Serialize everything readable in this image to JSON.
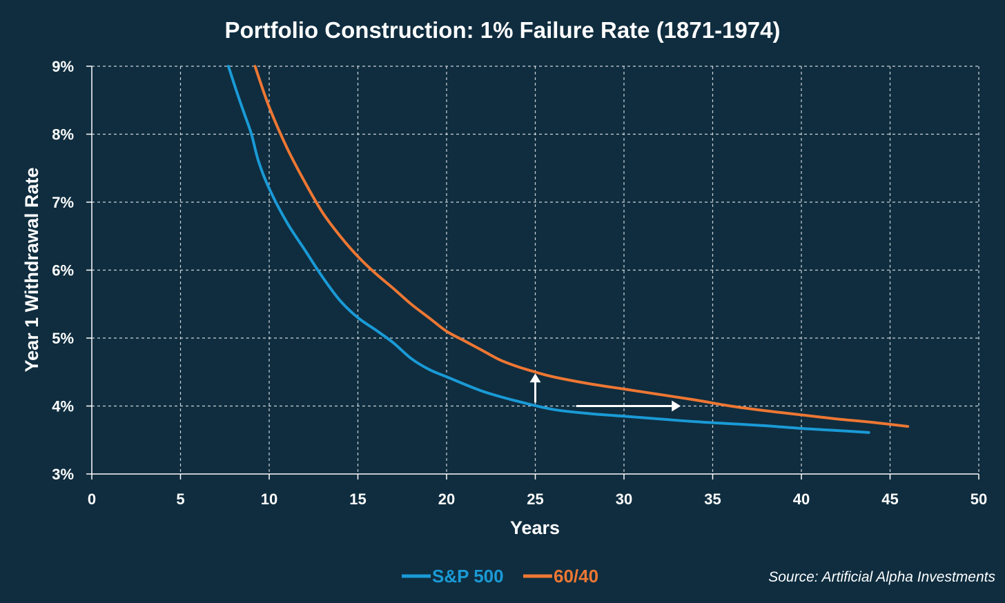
{
  "chart_data": {
    "type": "line",
    "title": "Portfolio Construction: 1% Failure Rate (1871-1974)",
    "xlabel": "Years",
    "ylabel": "Year 1 Withdrawal Rate",
    "xlim": [
      0,
      50
    ],
    "ylim": [
      3,
      9
    ],
    "x_ticks": [
      "0",
      "5",
      "10",
      "15",
      "20",
      "25",
      "30",
      "35",
      "40",
      "45",
      "50"
    ],
    "y_ticks": [
      "3%",
      "4%",
      "5%",
      "6%",
      "7%",
      "8%",
      "9%"
    ],
    "grid": true,
    "legend_position": "bottom",
    "series": [
      {
        "name": "S&P 500",
        "color": "#1a9ad6",
        "points": [
          [
            7.7,
            9.0
          ],
          [
            8.2,
            8.6
          ],
          [
            8.6,
            8.3
          ],
          [
            9.0,
            8.0
          ],
          [
            9.4,
            7.6
          ],
          [
            10.0,
            7.2
          ],
          [
            11.0,
            6.7
          ],
          [
            12.0,
            6.3
          ],
          [
            13.0,
            5.9
          ],
          [
            14.0,
            5.55
          ],
          [
            15.0,
            5.3
          ],
          [
            16.0,
            5.12
          ],
          [
            17.0,
            4.93
          ],
          [
            18.0,
            4.7
          ],
          [
            19.0,
            4.54
          ],
          [
            20.0,
            4.43
          ],
          [
            22.0,
            4.22
          ],
          [
            24.0,
            4.07
          ],
          [
            26.0,
            3.95
          ],
          [
            28.0,
            3.89
          ],
          [
            30.0,
            3.85
          ],
          [
            32.0,
            3.81
          ],
          [
            34.0,
            3.77
          ],
          [
            36.0,
            3.74
          ],
          [
            38.0,
            3.71
          ],
          [
            40.0,
            3.67
          ],
          [
            42.0,
            3.64
          ],
          [
            43.8,
            3.61
          ]
        ]
      },
      {
        "name": "60/40",
        "color": "#ee7733",
        "points": [
          [
            9.2,
            9.0
          ],
          [
            10.0,
            8.4
          ],
          [
            11.0,
            7.8
          ],
          [
            12.0,
            7.3
          ],
          [
            13.0,
            6.85
          ],
          [
            14.0,
            6.5
          ],
          [
            15.0,
            6.2
          ],
          [
            16.0,
            5.95
          ],
          [
            17.0,
            5.73
          ],
          [
            18.0,
            5.5
          ],
          [
            19.0,
            5.3
          ],
          [
            20.0,
            5.1
          ],
          [
            21.0,
            4.96
          ],
          [
            22.0,
            4.82
          ],
          [
            23.0,
            4.68
          ],
          [
            24.0,
            4.58
          ],
          [
            25.0,
            4.5
          ],
          [
            26.0,
            4.43
          ],
          [
            28.0,
            4.33
          ],
          [
            30.0,
            4.25
          ],
          [
            32.0,
            4.17
          ],
          [
            34.0,
            4.09
          ],
          [
            36.0,
            4.0
          ],
          [
            38.0,
            3.93
          ],
          [
            40.0,
            3.87
          ],
          [
            42.0,
            3.81
          ],
          [
            44.0,
            3.76
          ],
          [
            46.0,
            3.7
          ]
        ]
      }
    ],
    "annotations": [
      {
        "type": "arrow",
        "from": [
          25,
          4.05
        ],
        "to": [
          25,
          4.48
        ],
        "color": "#ffffff"
      },
      {
        "type": "arrow",
        "from": [
          27.3,
          4.0
        ],
        "to": [
          33.2,
          4.0
        ],
        "color": "#ffffff"
      }
    ]
  },
  "legend": {
    "items": [
      {
        "label": "S&P 500",
        "color": "#1a9ad6"
      },
      {
        "label": "60/40",
        "color": "#ee7733"
      }
    ]
  },
  "source_text": "Source: Artificial Alpha Investments",
  "colors": {
    "background": "#0f2d3f",
    "grid": "#cfd6db",
    "axis": "#ffffff",
    "text": "#ffffff"
  }
}
